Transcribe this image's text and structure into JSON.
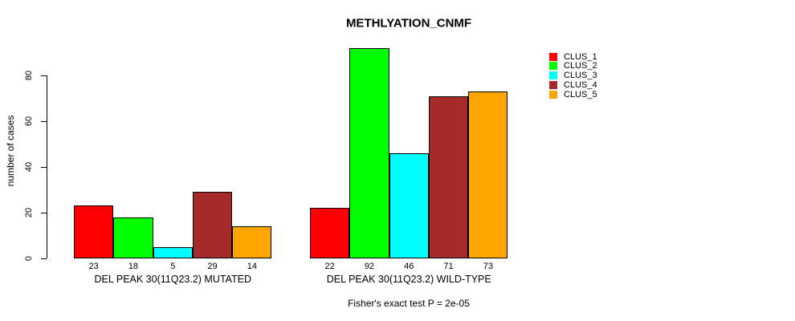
{
  "chart_data": {
    "type": "bar",
    "title": "METHLYATION_CNMF",
    "ylabel": "number of cases",
    "xlabel": "",
    "ylim": [
      0,
      80
    ],
    "yticks": [
      0,
      20,
      40,
      60,
      80
    ],
    "grid": false,
    "bar_value_labels": true,
    "legend_position": "right",
    "categories": [
      "DEL PEAK 30(11Q23.2) MUTATED",
      "DEL PEAK 30(11Q23.2) WILD-TYPE"
    ],
    "series": [
      {
        "name": "CLUS_1",
        "color": "#FF0000",
        "values": [
          23,
          22
        ]
      },
      {
        "name": "CLUS_2",
        "color": "#00FF00",
        "values": [
          18,
          92
        ]
      },
      {
        "name": "CLUS_3",
        "color": "#00FFFF",
        "values": [
          5,
          46
        ]
      },
      {
        "name": "CLUS_4",
        "color": "#A52A2A",
        "values": [
          29,
          71
        ]
      },
      {
        "name": "CLUS_5",
        "color": "#FFA500",
        "values": [
          14,
          73
        ]
      }
    ],
    "annotation": "Fisher's exact test P = 2e-05"
  }
}
